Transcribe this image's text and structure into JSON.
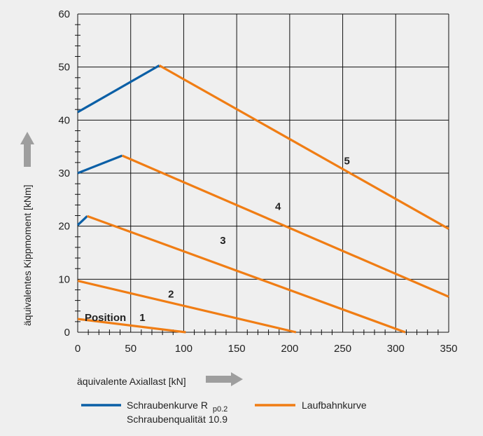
{
  "chart_data": {
    "type": "line",
    "xlabel": "äquivalente Axiallast [kN]",
    "ylabel": "äquivalentes Kippmoment [kNm]",
    "xlim": [
      0,
      350
    ],
    "ylim": [
      0,
      60
    ],
    "x_ticks": [
      0,
      50,
      100,
      150,
      200,
      250,
      300,
      350
    ],
    "y_ticks": [
      0,
      10,
      20,
      30,
      40,
      50,
      60
    ],
    "grid": true,
    "colors": {
      "blue": "#0a5fa6",
      "orange": "#f07d14"
    },
    "legend": {
      "placement": "bottom",
      "screw_curve": "Schraubenkurve R",
      "screw_subscript": "p0.2",
      "screw_quality": "Schraubenqualität 10.9",
      "raceway_curve": "Laufbahnkurve"
    },
    "position_label": "Position",
    "series": [
      {
        "kind": "screw",
        "position": "1",
        "points": [
          [
            0,
            2.5
          ]
        ]
      },
      {
        "kind": "screw",
        "position": "2",
        "points": [
          [
            0,
            9.7
          ]
        ]
      },
      {
        "kind": "screw",
        "position": "3",
        "points": [
          [
            0,
            20.2
          ],
          [
            9,
            21.9
          ]
        ]
      },
      {
        "kind": "screw",
        "position": "4",
        "points": [
          [
            0,
            30.0
          ],
          [
            42,
            33.3
          ]
        ]
      },
      {
        "kind": "screw",
        "position": "5",
        "points": [
          [
            0,
            41.5
          ],
          [
            77,
            50.3
          ]
        ]
      },
      {
        "kind": "raceway",
        "position": "1",
        "points": [
          [
            0,
            2.5
          ],
          [
            102,
            0
          ]
        ],
        "label_at": [
          61,
          2.8
        ]
      },
      {
        "kind": "raceway",
        "position": "2",
        "points": [
          [
            0,
            9.7
          ],
          [
            206,
            0
          ]
        ],
        "label_at": [
          88,
          7.2
        ]
      },
      {
        "kind": "raceway",
        "position": "3",
        "points": [
          [
            9,
            21.9
          ],
          [
            309,
            0
          ]
        ],
        "label_at": [
          137,
          17.3
        ]
      },
      {
        "kind": "raceway",
        "position": "4",
        "points": [
          [
            42,
            33.3
          ],
          [
            350,
            6.7
          ]
        ],
        "label_at": [
          189,
          23.7
        ]
      },
      {
        "kind": "raceway",
        "position": "5",
        "points": [
          [
            77,
            50.3
          ],
          [
            350,
            19.5
          ]
        ],
        "label_at": [
          254,
          32.3
        ]
      }
    ]
  }
}
